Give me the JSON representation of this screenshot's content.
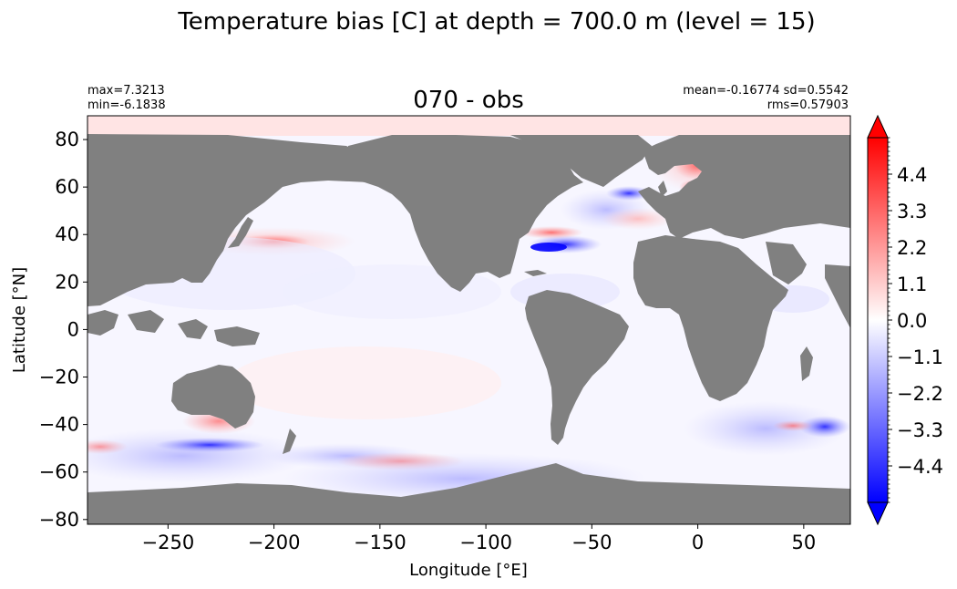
{
  "figure": {
    "suptitle": "Temperature bias [C] at depth = 700.0 m (level = 15)"
  },
  "map": {
    "title": "070 - obs",
    "stats_left": [
      "max=7.3213",
      "min=-6.1838"
    ],
    "stats_right": [
      "mean=-0.16774 sd=0.5542",
      "rms=0.57903"
    ],
    "xlabel": "Longitude [°E]",
    "ylabel": "Latitude [°N]",
    "xlim": [
      -288,
      72
    ],
    "ylim": [
      -82,
      90
    ],
    "xticks": [
      -250,
      -200,
      -150,
      -100,
      -50,
      0,
      50
    ],
    "xtick_labels": [
      "−250",
      "−200",
      "−150",
      "−100",
      "−50",
      "0",
      "50"
    ],
    "yticks": [
      80,
      60,
      40,
      20,
      0,
      -20,
      -40,
      -60,
      -80
    ],
    "ytick_labels": [
      "80",
      "60",
      "40",
      "20",
      "0",
      "−20",
      "−40",
      "−60",
      "−80"
    ],
    "colors": {
      "land": "#808080",
      "ocean_neutral": "#ffffff"
    }
  },
  "colorbar": {
    "cmap": "bwr",
    "vmin": -5.5,
    "vmax": 5.5,
    "extend": "both",
    "ticks": [
      4.4,
      3.3,
      2.2,
      1.1,
      0.0,
      -1.1,
      -2.2,
      -3.3,
      -4.4
    ],
    "tick_labels": [
      "4.4",
      "3.3",
      "2.2",
      "1.1",
      "0.0",
      "−1.1",
      "−2.2",
      "−3.3",
      "−4.4"
    ],
    "colors": {
      "min": "#0000ff",
      "mid": "#ffffff",
      "max": "#ff0000"
    }
  }
}
